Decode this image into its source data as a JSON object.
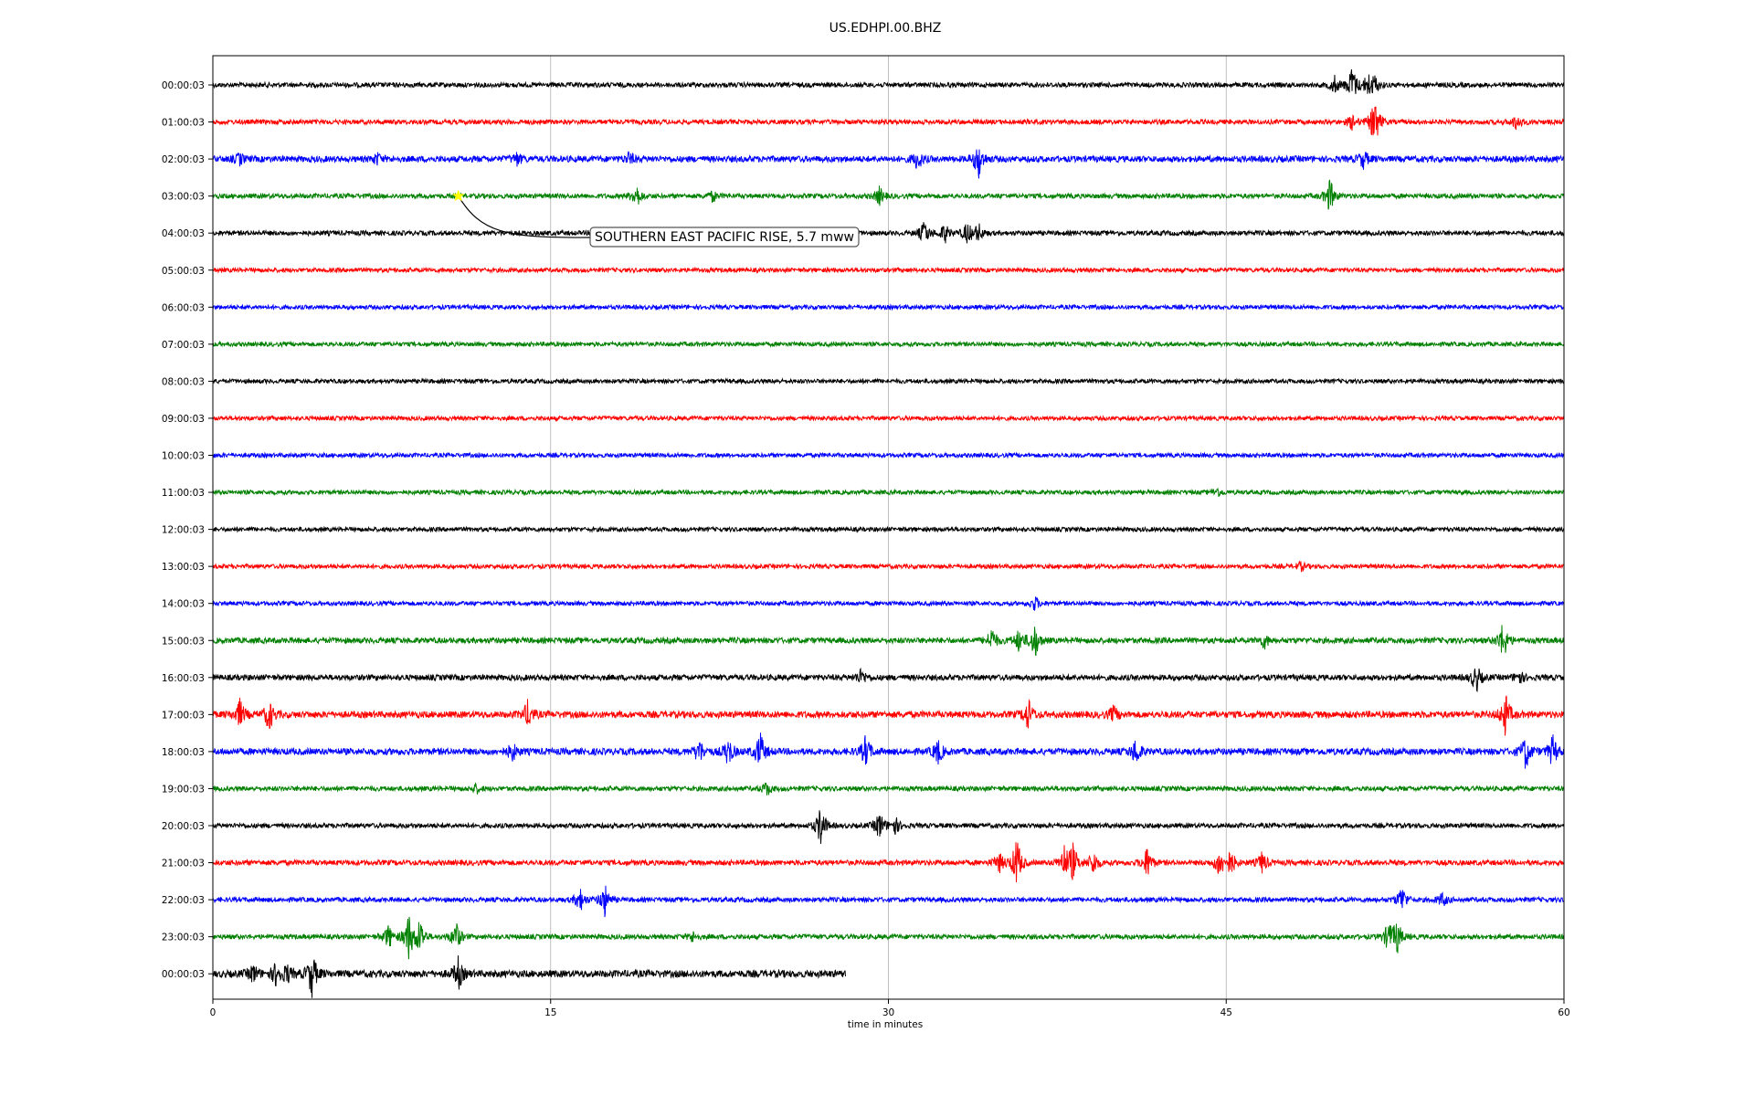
{
  "chart_data": {
    "type": "line",
    "title": "US.EDHPI.00.BHZ",
    "xlabel": "time in minutes",
    "ylabel": "",
    "xlim": [
      0,
      60
    ],
    "x_ticks": [
      0,
      15,
      30,
      45,
      60
    ],
    "grid": "vertical",
    "colors": [
      "#000000",
      "#ff0000",
      "#0000ff",
      "#008000"
    ],
    "rows": [
      {
        "label": "00:00:03",
        "color": "#000000",
        "end_min": 60,
        "noise": 1.0,
        "events": [
          {
            "t": 50.6,
            "a": 22
          },
          {
            "t": 49.8,
            "a": 10
          },
          {
            "t": 51.3,
            "a": 12
          },
          {
            "t": 51.6,
            "a": 9
          }
        ]
      },
      {
        "label": "01:00:03",
        "color": "#ff0000",
        "end_min": 60,
        "noise": 1.0,
        "events": [
          {
            "t": 51.6,
            "a": 30
          },
          {
            "t": 50.6,
            "a": 8
          },
          {
            "t": 57.9,
            "a": 9
          }
        ]
      },
      {
        "label": "02:00:03",
        "color": "#0000ff",
        "end_min": 60,
        "noise": 1.3,
        "events": [
          {
            "t": 1.2,
            "a": 6
          },
          {
            "t": 7.3,
            "a": 6
          },
          {
            "t": 13.5,
            "a": 7
          },
          {
            "t": 18.5,
            "a": 7
          },
          {
            "t": 31.3,
            "a": 12
          },
          {
            "t": 34.0,
            "a": 22
          },
          {
            "t": 51.1,
            "a": 10
          }
        ]
      },
      {
        "label": "03:00:03",
        "color": "#008000",
        "end_min": 60,
        "noise": 1.0,
        "events": [
          {
            "t": 18.8,
            "a": 14
          },
          {
            "t": 22.2,
            "a": 6
          },
          {
            "t": 29.6,
            "a": 10
          },
          {
            "t": 49.6,
            "a": 20
          }
        ]
      },
      {
        "label": "04:00:03",
        "color": "#000000",
        "end_min": 60,
        "noise": 1.0,
        "events": [
          {
            "t": 31.6,
            "a": 14
          },
          {
            "t": 32.5,
            "a": 11
          },
          {
            "t": 33.5,
            "a": 12
          },
          {
            "t": 34.0,
            "a": 10
          }
        ]
      },
      {
        "label": "05:00:03",
        "color": "#ff0000",
        "end_min": 60,
        "noise": 0.9,
        "events": []
      },
      {
        "label": "06:00:03",
        "color": "#0000ff",
        "end_min": 60,
        "noise": 0.9,
        "events": []
      },
      {
        "label": "07:00:03",
        "color": "#008000",
        "end_min": 60,
        "noise": 0.9,
        "events": []
      },
      {
        "label": "08:00:03",
        "color": "#000000",
        "end_min": 60,
        "noise": 0.9,
        "events": []
      },
      {
        "label": "09:00:03",
        "color": "#ff0000",
        "end_min": 60,
        "noise": 0.9,
        "events": []
      },
      {
        "label": "10:00:03",
        "color": "#0000ff",
        "end_min": 60,
        "noise": 0.9,
        "events": []
      },
      {
        "label": "11:00:03",
        "color": "#008000",
        "end_min": 60,
        "noise": 0.9,
        "events": [
          {
            "t": 44.6,
            "a": 5
          }
        ]
      },
      {
        "label": "12:00:03",
        "color": "#000000",
        "end_min": 60,
        "noise": 0.9,
        "events": []
      },
      {
        "label": "13:00:03",
        "color": "#ff0000",
        "end_min": 60,
        "noise": 0.9,
        "events": [
          {
            "t": 48.3,
            "a": 5
          }
        ]
      },
      {
        "label": "14:00:03",
        "color": "#0000ff",
        "end_min": 60,
        "noise": 0.9,
        "events": [
          {
            "t": 36.5,
            "a": 8
          }
        ]
      },
      {
        "label": "15:00:03",
        "color": "#008000",
        "end_min": 60,
        "noise": 1.2,
        "events": [
          {
            "t": 34.6,
            "a": 14
          },
          {
            "t": 36.5,
            "a": 20
          },
          {
            "t": 35.8,
            "a": 12
          },
          {
            "t": 46.7,
            "a": 8
          },
          {
            "t": 57.3,
            "a": 22
          }
        ]
      },
      {
        "label": "16:00:03",
        "color": "#000000",
        "end_min": 60,
        "noise": 1.2,
        "events": [
          {
            "t": 28.8,
            "a": 9
          },
          {
            "t": 56.1,
            "a": 16
          },
          {
            "t": 58.0,
            "a": 8
          }
        ]
      },
      {
        "label": "17:00:03",
        "color": "#ff0000",
        "end_min": 60,
        "noise": 1.4,
        "events": [
          {
            "t": 1.2,
            "a": 16
          },
          {
            "t": 2.5,
            "a": 18
          },
          {
            "t": 14.0,
            "a": 16
          },
          {
            "t": 36.2,
            "a": 18
          },
          {
            "t": 40.0,
            "a": 9
          },
          {
            "t": 57.4,
            "a": 24
          }
        ]
      },
      {
        "label": "18:00:03",
        "color": "#0000ff",
        "end_min": 60,
        "noise": 1.4,
        "events": [
          {
            "t": 13.3,
            "a": 10
          },
          {
            "t": 21.6,
            "a": 14
          },
          {
            "t": 22.9,
            "a": 16
          },
          {
            "t": 24.3,
            "a": 22
          },
          {
            "t": 29.0,
            "a": 18
          },
          {
            "t": 32.2,
            "a": 14
          },
          {
            "t": 41.0,
            "a": 16
          },
          {
            "t": 58.3,
            "a": 20
          },
          {
            "t": 59.5,
            "a": 18
          }
        ]
      },
      {
        "label": "19:00:03",
        "color": "#008000",
        "end_min": 60,
        "noise": 1.0,
        "events": [
          {
            "t": 24.6,
            "a": 8
          },
          {
            "t": 11.7,
            "a": 5
          }
        ]
      },
      {
        "label": "20:00:03",
        "color": "#000000",
        "end_min": 60,
        "noise": 1.0,
        "events": [
          {
            "t": 27.0,
            "a": 24
          },
          {
            "t": 29.6,
            "a": 16
          },
          {
            "t": 30.3,
            "a": 10
          }
        ]
      },
      {
        "label": "21:00:03",
        "color": "#ff0000",
        "end_min": 60,
        "noise": 1.1,
        "events": [
          {
            "t": 35.7,
            "a": 30
          },
          {
            "t": 34.9,
            "a": 12
          },
          {
            "t": 37.8,
            "a": 18
          },
          {
            "t": 38.2,
            "a": 20
          },
          {
            "t": 39.1,
            "a": 14
          },
          {
            "t": 41.5,
            "a": 18
          },
          {
            "t": 44.7,
            "a": 16
          },
          {
            "t": 45.2,
            "a": 14
          },
          {
            "t": 46.6,
            "a": 12
          }
        ]
      },
      {
        "label": "22:00:03",
        "color": "#0000ff",
        "end_min": 60,
        "noise": 1.0,
        "events": [
          {
            "t": 16.3,
            "a": 14
          },
          {
            "t": 17.4,
            "a": 18
          },
          {
            "t": 52.8,
            "a": 16
          },
          {
            "t": 54.6,
            "a": 8
          }
        ]
      },
      {
        "label": "23:00:03",
        "color": "#008000",
        "end_min": 60,
        "noise": 1.0,
        "events": [
          {
            "t": 7.8,
            "a": 14
          },
          {
            "t": 8.7,
            "a": 26
          },
          {
            "t": 9.2,
            "a": 20
          },
          {
            "t": 10.8,
            "a": 18
          },
          {
            "t": 21.3,
            "a": 6
          },
          {
            "t": 52.2,
            "a": 16
          },
          {
            "t": 52.6,
            "a": 18
          }
        ]
      },
      {
        "label": "00:00:03",
        "color": "#000000",
        "end_min": 28.1,
        "noise": 1.5,
        "events": [
          {
            "t": 1.8,
            "a": 10
          },
          {
            "t": 2.8,
            "a": 12
          },
          {
            "t": 3.3,
            "a": 10
          },
          {
            "t": 4.4,
            "a": 26
          },
          {
            "t": 10.9,
            "a": 18
          }
        ]
      }
    ],
    "annotation": {
      "text": "SOUTHERN EAST PACIFIC RISE, 5.7 mww",
      "marker_row": 3,
      "marker_min": 10.9,
      "marker_color": "#ffff00"
    }
  }
}
